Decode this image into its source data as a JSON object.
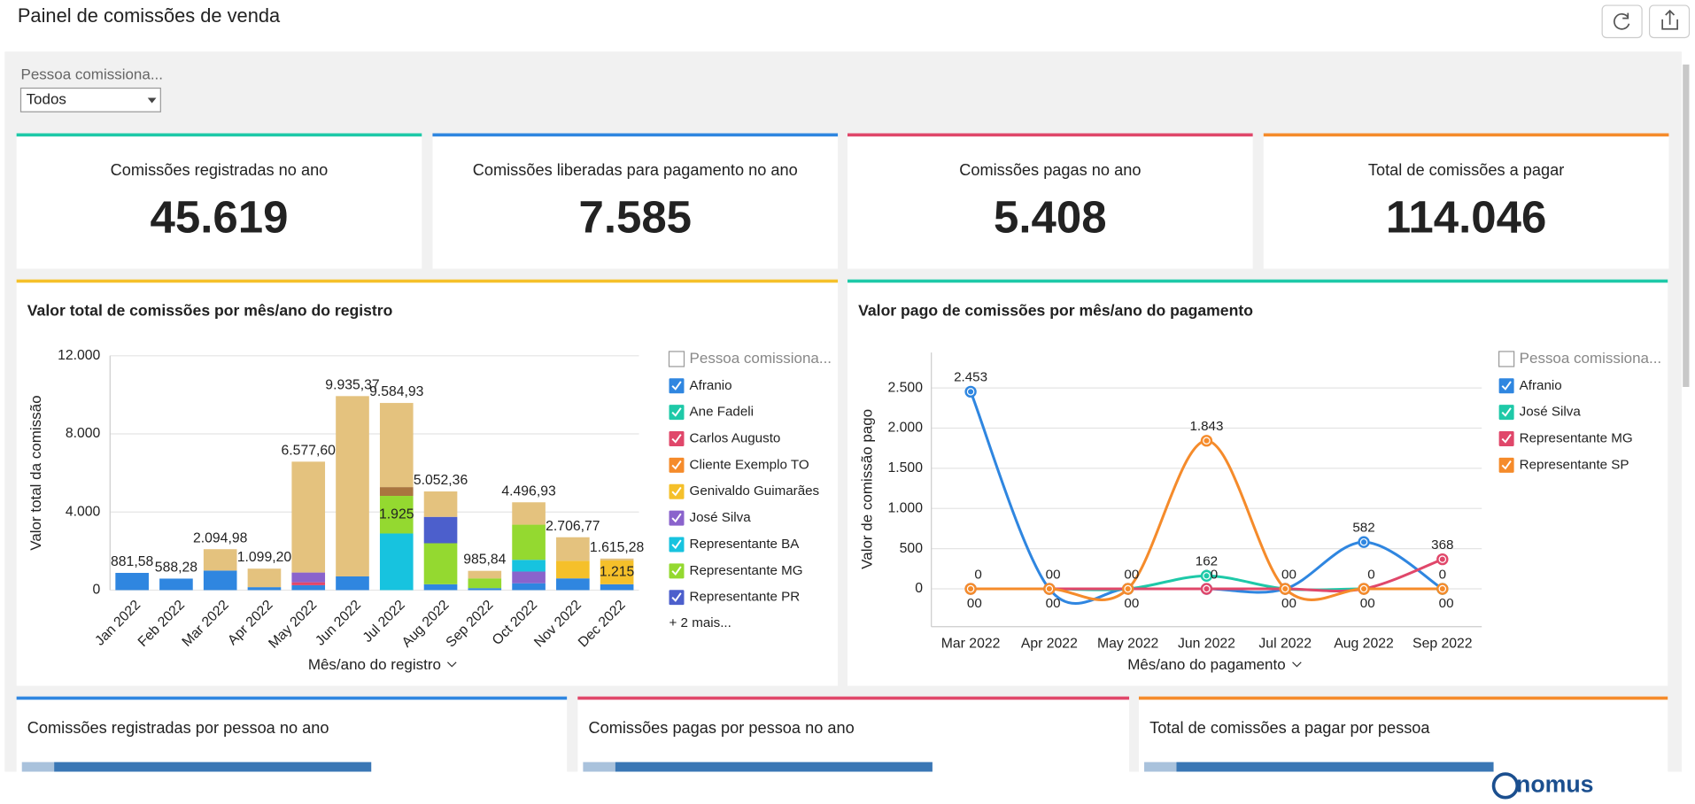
{
  "header": {
    "title": "Painel de comissões de venda"
  },
  "filter": {
    "label": "Pessoa comissiona...",
    "value": "Todos"
  },
  "kpis": [
    {
      "title": "Comissões registradas no ano",
      "value": 45619,
      "value_label": "45.619",
      "color": "#1ec9a8"
    },
    {
      "title": "Comissões liberadas para pagamento no ano",
      "value": 7585,
      "value_label": "7.585",
      "color": "#2f86e0"
    },
    {
      "title": "Comissões pagas no ano",
      "value": 5408,
      "value_label": "5.408",
      "color": "#e0476a"
    },
    {
      "title": "Total de comissões a pagar",
      "value": 114046,
      "value_label": "114.046",
      "color": "#f58b2b"
    }
  ],
  "chart_data": [
    {
      "type": "stacked_bar",
      "title": "Valor total de comissões por mês/ano do registro",
      "xlabel": "Mês/ano do registro",
      "ylabel": "Valor total da comissão",
      "legend_title": "Pessoa comissiona...",
      "legend_more": "+ 2 mais...",
      "panel_color": "#f5c02a",
      "grid": true,
      "categories": [
        "Jan 2022",
        "Feb 2022",
        "Mar 2022",
        "Apr 2022",
        "May 2022",
        "Jun 2022",
        "Jul 2022",
        "Aug 2022",
        "Sep 2022",
        "Oct 2022",
        "Nov 2022",
        "Dec 2022"
      ],
      "ylim": [
        0,
        12000
      ],
      "yticks": [
        0,
        {
          "value": 4000,
          "label": "4.000"
        },
        {
          "value": 8000,
          "label": "8.000"
        },
        {
          "value": 12000,
          "label": "12.000"
        }
      ],
      "series": [
        {
          "name": "Afranio",
          "color": "#2f86e0",
          "values": [
            881.58,
            588.28,
            1000,
            150,
            250,
            700,
            0,
            300,
            100,
            350,
            600,
            300
          ]
        },
        {
          "name": "Ane Fadeli",
          "color": "#1ec9a8",
          "values": [
            0,
            0,
            0,
            0,
            0,
            0,
            0,
            0,
            0,
            0,
            0,
            0
          ]
        },
        {
          "name": "Carlos Augusto",
          "color": "#e0476a",
          "values": [
            0,
            0,
            0,
            0,
            150,
            0,
            0,
            0,
            0,
            0,
            0,
            0
          ]
        },
        {
          "name": "Cliente Exemplo TO",
          "color": "#f58b2b",
          "values": [
            0,
            0,
            0,
            0,
            0,
            0,
            0,
            0,
            0,
            0,
            0,
            0
          ]
        },
        {
          "name": "Genivaldo Guimarães",
          "color": "#f5c02a",
          "values": [
            0,
            0,
            0,
            0,
            0,
            0,
            0,
            0,
            0,
            0,
            900,
            1215
          ],
          "value_labels": [
            null,
            null,
            null,
            null,
            null,
            null,
            null,
            null,
            null,
            null,
            null,
            "1.215"
          ]
        },
        {
          "name": "José Silva",
          "color": "#8a63cc",
          "values": [
            0,
            0,
            0,
            0,
            500,
            0,
            0,
            0,
            0,
            600,
            0,
            0
          ]
        },
        {
          "name": "Representante BA",
          "color": "#17c3df",
          "values": [
            0,
            0,
            0,
            0,
            0,
            0,
            2900,
            0,
            0,
            600,
            0,
            0
          ]
        },
        {
          "name": "Representante MG",
          "color": "#94d930",
          "values": [
            0,
            0,
            0,
            0,
            0,
            0,
            1925,
            2100,
            500,
            1800,
            0,
            0
          ],
          "value_labels": [
            null,
            null,
            null,
            null,
            null,
            null,
            "1.925",
            null,
            null,
            null,
            null,
            null
          ]
        },
        {
          "name": "Representante PR",
          "color": "#4c5fcc",
          "values": [
            0,
            0,
            0,
            0,
            0,
            0,
            0,
            1350,
            0,
            0,
            0,
            0
          ]
        },
        {
          "color": "#a9753f",
          "values": [
            0,
            0,
            0,
            0,
            0,
            0,
            450,
            0,
            0,
            0,
            0,
            0
          ]
        },
        {
          "color": "#e4c27e",
          "values": [
            0,
            0,
            1094.98,
            949.2,
            5677.6,
            9235.37,
            4309.93,
            1302.36,
            385.84,
            1146.93,
            1206.77,
            100.28
          ]
        }
      ],
      "totals": [
        881.58,
        588.28,
        2094.98,
        1099.2,
        6577.6,
        9935.37,
        9584.93,
        5052.36,
        985.84,
        4496.93,
        2706.77,
        1615.28
      ],
      "total_labels": [
        "881,58",
        "588,28",
        "2.094,98",
        "1.099,20",
        "6.577,60",
        "9.935,37",
        "9.584,93",
        "5.052,36",
        "985,84",
        "4.496,93",
        "2.706,77",
        "1.615,28"
      ]
    },
    {
      "type": "line",
      "title": "Valor pago de comissões por mês/ano do pagamento",
      "xlabel": "Mês/ano do pagamento",
      "ylabel": "Valor de comissão pago",
      "legend_title": "Pessoa comissiona...",
      "panel_color": "#1ec9a8",
      "grid": true,
      "categories": [
        "Mar 2022",
        "Apr 2022",
        "May 2022",
        "Jun 2022",
        "Jul 2022",
        "Aug 2022",
        "Sep 2022"
      ],
      "ylim": [
        -470,
        2940
      ],
      "yticks": [
        0,
        500,
        {
          "value": 1000,
          "label": "1.000"
        },
        {
          "value": 1500,
          "label": "1.500"
        },
        {
          "value": 2000,
          "label": "2.000"
        },
        {
          "value": 2500,
          "label": "2.500"
        }
      ],
      "series": [
        {
          "name": "Afranio",
          "color": "#2f86e0",
          "values": [
            2453,
            0,
            0,
            0,
            0,
            582,
            0
          ],
          "value_labels": [
            "2.453",
            "0",
            "0",
            "0",
            "0",
            "582",
            "0"
          ]
        },
        {
          "name": "José Silva",
          "color": "#1ec9a8",
          "values": [
            0,
            0,
            0,
            162,
            0,
            0,
            0
          ]
        },
        {
          "name": "Representante MG",
          "color": "#e0476a",
          "values": [
            0,
            0,
            0,
            0,
            0,
            0,
            368
          ]
        },
        {
          "name": "Representante SP",
          "color": "#f58b2b",
          "values": [
            0,
            0,
            0,
            1843,
            0,
            0,
            0
          ],
          "value_labels": [
            "0",
            "0",
            "0",
            "1.843",
            "0",
            "0",
            "0"
          ]
        }
      ]
    }
  ],
  "tables": [
    {
      "title": "Comissões registradas por pessoa no ano",
      "color": "#2f86e0"
    },
    {
      "title": "Comissões pagas por pessoa no ano",
      "color": "#e0476a"
    },
    {
      "title": "Total de comissões a pagar por pessoa",
      "color": "#f58b2b"
    }
  ],
  "brand": "nomus"
}
